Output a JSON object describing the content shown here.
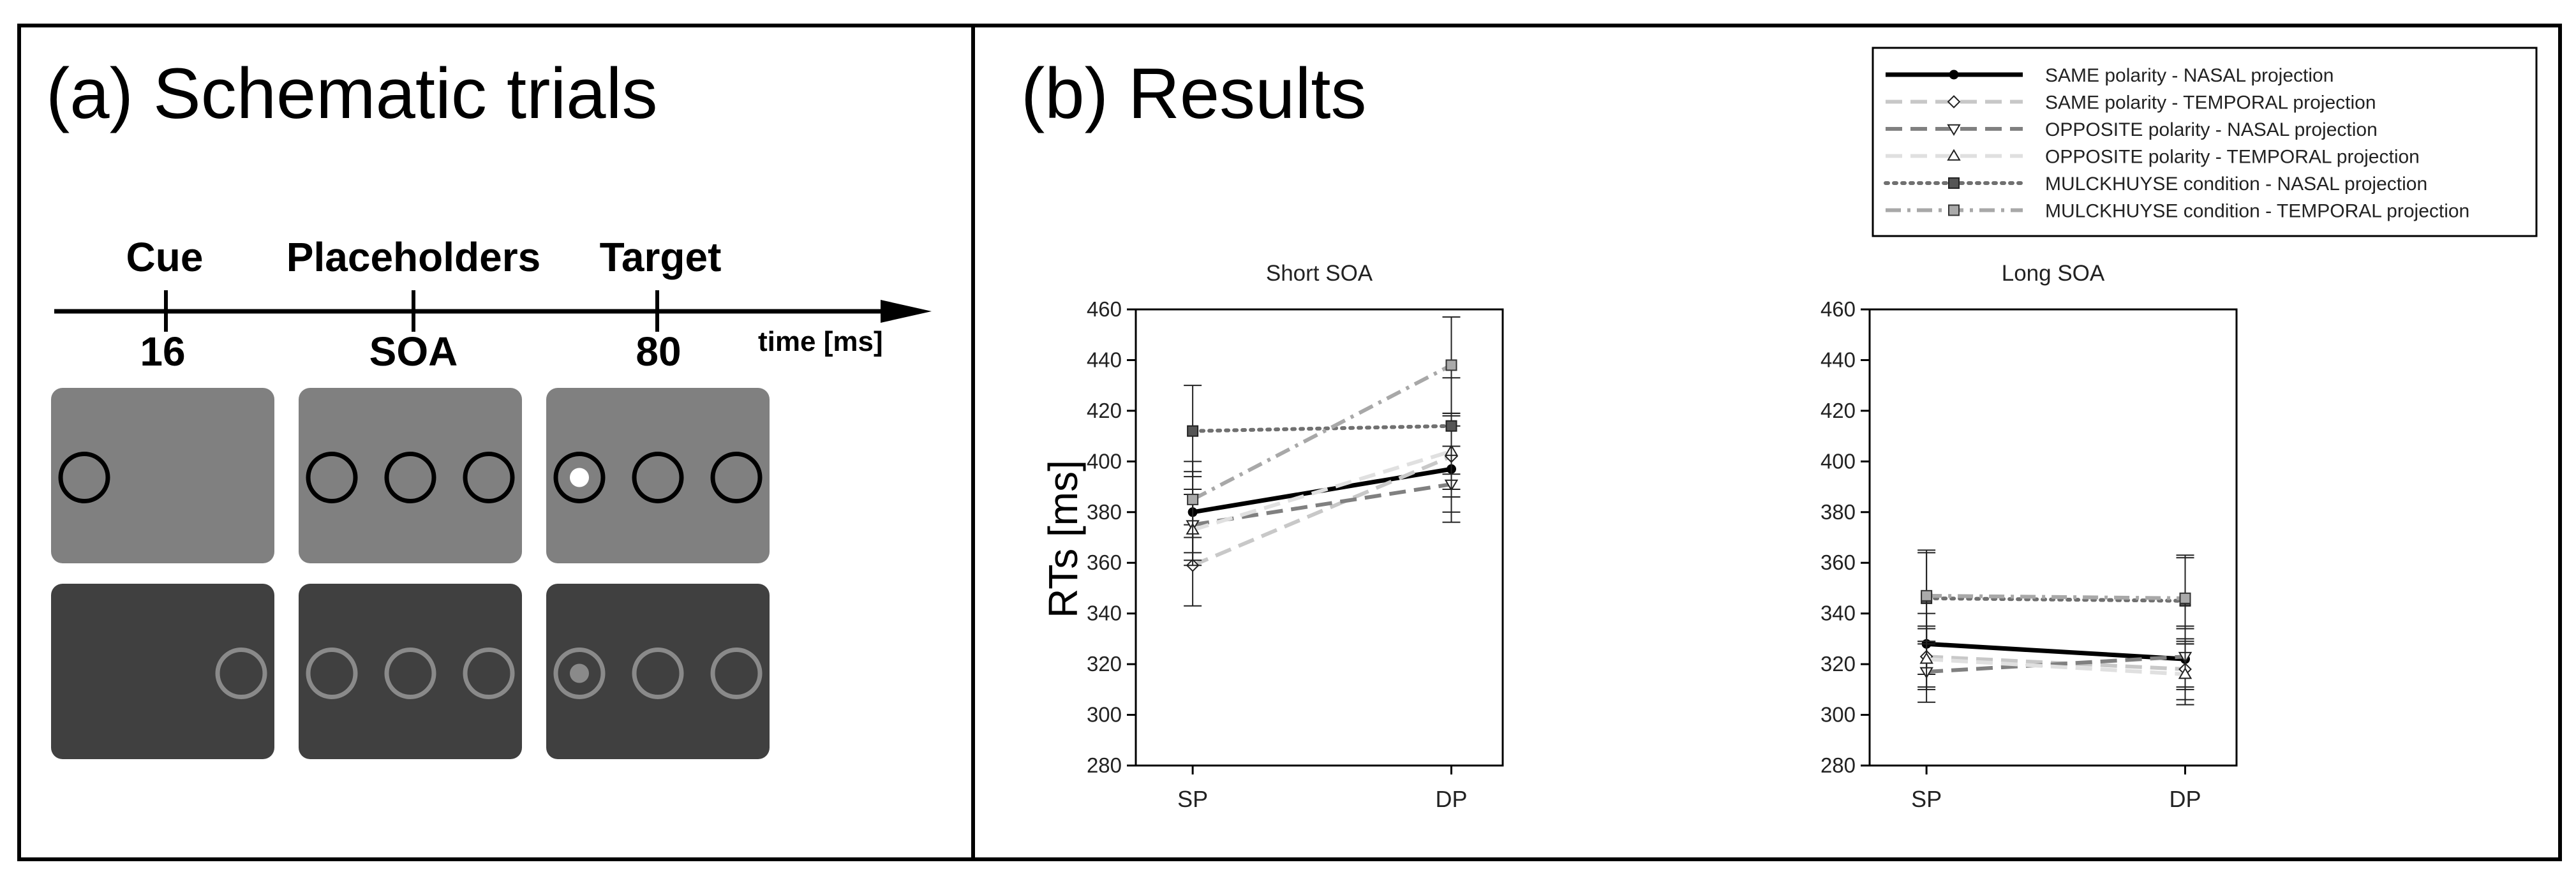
{
  "panel_a": {
    "title": "(a) Schematic trials",
    "timeline": {
      "events": [
        {
          "label": "Cue",
          "duration": "16"
        },
        {
          "label": "Placeholders",
          "duration": "SOA"
        },
        {
          "label": "Target",
          "duration": "80"
        }
      ],
      "unit": "time [ms]"
    },
    "conditions": [
      {
        "name": "light",
        "background": "#808080",
        "ring": "#000000",
        "dot": "#ffffff"
      },
      {
        "name": "dark",
        "background": "#404040",
        "ring": "#8a8a8a",
        "dot": "#8a8a8a"
      }
    ],
    "frames": [
      {
        "rings": [
          0
        ],
        "dot_ring": null
      },
      {
        "rings": [
          0,
          1,
          2
        ],
        "dot_ring": null
      },
      {
        "rings": [
          0,
          1,
          2
        ],
        "dot_ring": 0
      }
    ],
    "frames_dark": [
      {
        "rings": [
          2
        ],
        "dot_ring": null
      },
      {
        "rings": [
          0,
          1,
          2
        ],
        "dot_ring": null
      },
      {
        "rings": [
          0,
          1,
          2
        ],
        "dot_ring": 0
      }
    ]
  },
  "panel_b": {
    "title": "(b) Results"
  },
  "chart_data": {
    "type": "line",
    "ylabel": "RTs [ms]",
    "ylim": [
      280,
      460
    ],
    "yticks": [
      280,
      300,
      320,
      340,
      360,
      380,
      400,
      420,
      440,
      460
    ],
    "categories": [
      "SP",
      "DP"
    ],
    "legend_position": "top-right",
    "legend": [
      {
        "label": "SAME polarity - NASAL projection",
        "color": "#000000",
        "dash": "solid",
        "marker": "circle-filled"
      },
      {
        "label": "SAME polarity - TEMPORAL projection",
        "color": "#c8c8c8",
        "dash": "longdash",
        "marker": "diamond-open"
      },
      {
        "label": "OPPOSITE polarity - NASAL projection",
        "color": "#808080",
        "dash": "longdash",
        "marker": "triangle-down-open"
      },
      {
        "label": "OPPOSITE polarity - TEMPORAL projection",
        "color": "#e0e0e0",
        "dash": "longdash",
        "marker": "triangle-up-open"
      },
      {
        "label": "MULCKHUYSE condition - NASAL projection",
        "color": "#707070",
        "dash": "dotted",
        "marker": "square-dark"
      },
      {
        "label": "MULCKHUYSE condition - TEMPORAL projection",
        "color": "#a8a8a8",
        "dash": "dashdot",
        "marker": "square-gray"
      }
    ],
    "subplots": [
      {
        "title": "Short SOA",
        "series": [
          {
            "name": "SAME polarity - NASAL projection",
            "values": [
              380,
              397
            ],
            "errors": [
              16,
              17
            ]
          },
          {
            "name": "SAME polarity - TEMPORAL projection",
            "values": [
              359,
              402
            ],
            "errors": [
              16,
              16
            ]
          },
          {
            "name": "OPPOSITE polarity - NASAL projection",
            "values": [
              375,
              391
            ],
            "errors": [
              14,
              15
            ]
          },
          {
            "name": "OPPOSITE polarity - TEMPORAL projection",
            "values": [
              373,
              404
            ],
            "errors": [
              14,
              15
            ]
          },
          {
            "name": "MULCKHUYSE condition - NASAL projection",
            "values": [
              412,
              414
            ],
            "errors": [
              18,
              19
            ]
          },
          {
            "name": "MULCKHUYSE condition - TEMPORAL projection",
            "values": [
              385,
              438
            ],
            "errors": [
              15,
              19
            ]
          }
        ]
      },
      {
        "title": "Long SOA",
        "series": [
          {
            "name": "SAME polarity - NASAL projection",
            "values": [
              328,
              322
            ],
            "errors": [
              12,
              12
            ]
          },
          {
            "name": "SAME polarity - TEMPORAL projection",
            "values": [
              323,
              318
            ],
            "errors": [
              12,
              12
            ]
          },
          {
            "name": "OPPOSITE polarity - NASAL projection",
            "values": [
              317,
              323
            ],
            "errors": [
              12,
              12
            ]
          },
          {
            "name": "OPPOSITE polarity - TEMPORAL projection",
            "values": [
              322,
              316
            ],
            "errors": [
              12,
              12
            ]
          },
          {
            "name": "MULCKHUYSE condition - NASAL projection",
            "values": [
              346,
              345
            ],
            "errors": [
              18,
              17
            ]
          },
          {
            "name": "MULCKHUYSE condition - TEMPORAL projection",
            "values": [
              347,
              346
            ],
            "errors": [
              18,
              17
            ]
          }
        ]
      }
    ]
  }
}
